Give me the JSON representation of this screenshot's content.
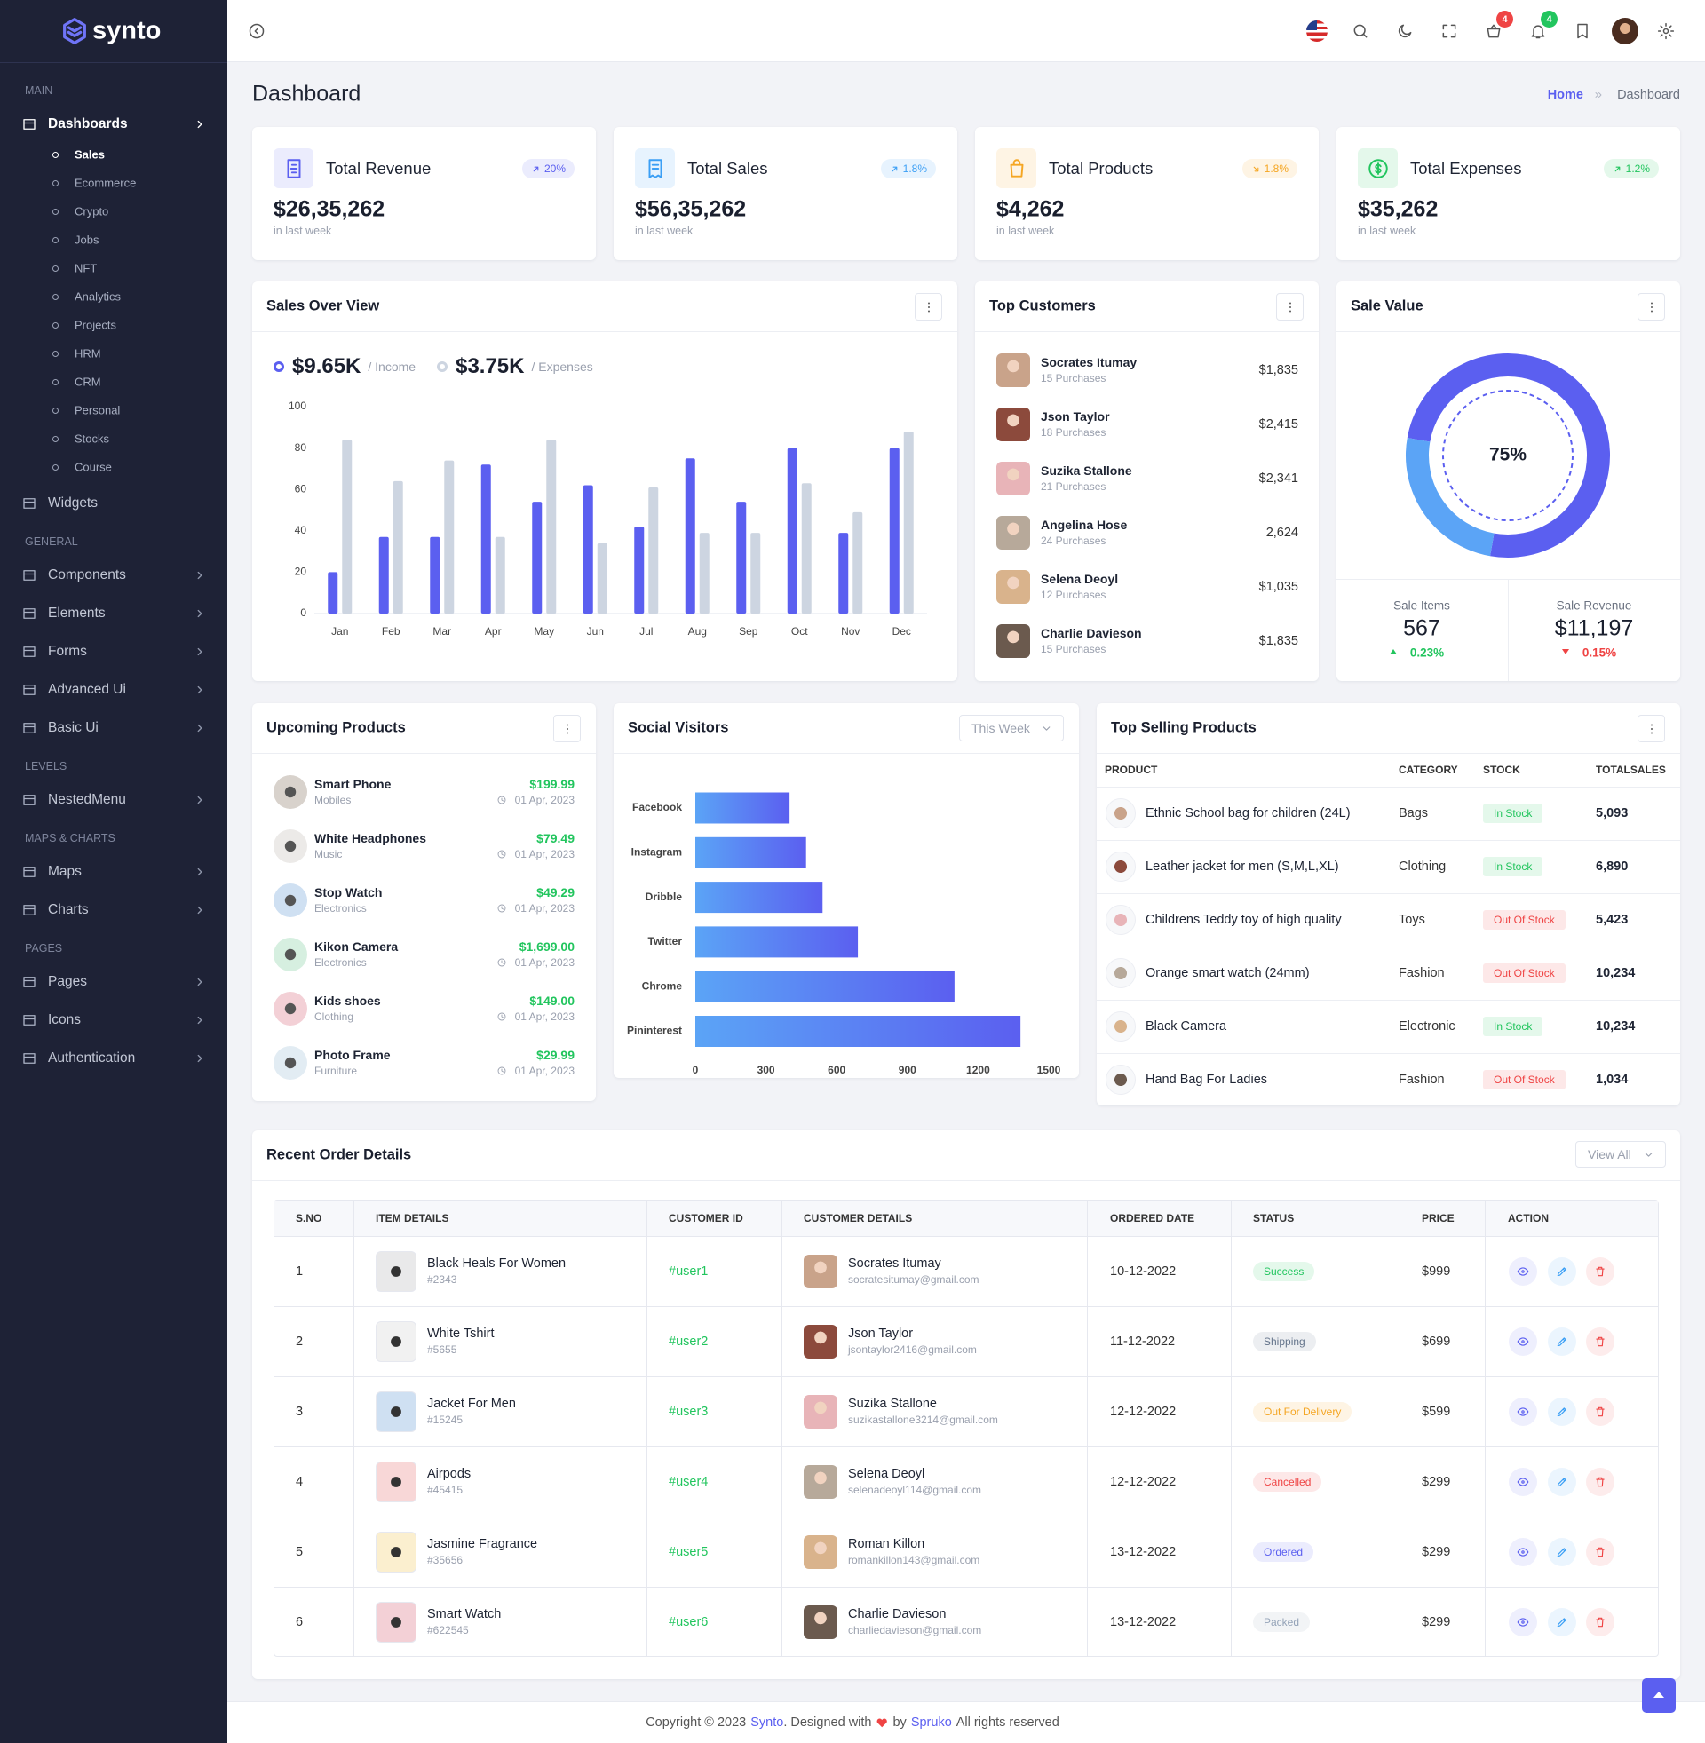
{
  "sidebar": {
    "logo": "synto",
    "sections": [
      {
        "title": "MAIN",
        "items": [
          {
            "label": "Dashboards",
            "submenu": true,
            "children": [
              "Sales",
              "Ecommerce",
              "Crypto",
              "Jobs",
              "NFT",
              "Analytics",
              "Projects",
              "HRM",
              "CRM",
              "Personal",
              "Stocks",
              "Course"
            ]
          },
          {
            "label": "Widgets",
            "submenu": false
          }
        ]
      },
      {
        "title": "GENERAL",
        "items": [
          {
            "label": "Components",
            "submenu": true
          },
          {
            "label": "Elements",
            "submenu": true
          },
          {
            "label": "Forms",
            "submenu": true
          },
          {
            "label": "Advanced Ui",
            "submenu": true
          },
          {
            "label": "Basic Ui",
            "submenu": true
          }
        ]
      },
      {
        "title": "LEVELS",
        "items": [
          {
            "label": "NestedMenu",
            "submenu": true
          }
        ]
      },
      {
        "title": "MAPS & CHARTS",
        "items": [
          {
            "label": "Maps",
            "submenu": true
          },
          {
            "label": "Charts",
            "submenu": true
          }
        ]
      },
      {
        "title": "PAGES",
        "items": [
          {
            "label": "Pages",
            "submenu": true
          },
          {
            "label": "Icons",
            "submenu": true
          },
          {
            "label": "Authentication",
            "submenu": true
          }
        ]
      }
    ]
  },
  "header": {
    "cart_badge": "4",
    "notification_badge": "4"
  },
  "page": {
    "title": "Dashboard",
    "breadcrumb": [
      "Home",
      "Dashboard"
    ]
  },
  "stats": [
    {
      "title": "Total Revenue",
      "change": "20%",
      "trend": "up",
      "value": "$26,35,262",
      "note": "in last week",
      "color": "#5b5ff0"
    },
    {
      "title": "Total Sales",
      "change": "1.8%",
      "trend": "up",
      "value": "$56,35,262",
      "note": "in last week",
      "color": "#3b9ff5"
    },
    {
      "title": "Total Products",
      "change": "1.8%",
      "trend": "down",
      "value": "$4,262",
      "note": "in last week",
      "color": "#f5a623"
    },
    {
      "title": "Total Expenses",
      "change": "1.2%",
      "trend": "up",
      "value": "$35,262",
      "note": "in last week",
      "color": "#22c55e"
    }
  ],
  "chart_data": [
    {
      "type": "bar",
      "title": "Sales Over View",
      "categories": [
        "Jan",
        "Feb",
        "Mar",
        "Apr",
        "May",
        "Jun",
        "Jul",
        "Aug",
        "Sep",
        "Oct",
        "Nov",
        "Dec"
      ],
      "series": [
        {
          "name": "/ Income",
          "total": "$9.65K",
          "color": "#5b5ff0",
          "values": [
            20,
            37,
            37,
            72,
            54,
            62,
            42,
            75,
            54,
            80,
            39,
            80
          ]
        },
        {
          "name": "/ Expenses",
          "total": "$3.75K",
          "color": "#cdd5e1",
          "values": [
            84,
            64,
            74,
            37,
            84,
            34,
            61,
            39,
            39,
            63,
            49,
            88
          ]
        }
      ],
      "ylim": [
        0,
        100
      ],
      "yticks": [
        0,
        20,
        40,
        60,
        80,
        100
      ],
      "grid": false
    },
    {
      "type": "doughnut",
      "title": "Sale Value",
      "values": [
        75,
        25
      ],
      "colors": [
        "#5b5ff0",
        "#5ba4f6"
      ],
      "center_label": "75%"
    },
    {
      "type": "barh",
      "title": "Social Visitors",
      "filter": "This Week",
      "categories": [
        "Facebook",
        "Instagram",
        "Dribble",
        "Twitter",
        "Chrome",
        "Pininterest"
      ],
      "values": [
        400,
        470,
        540,
        690,
        1100,
        1380
      ],
      "colors": [
        "#5ba4f6",
        "#5b5ff0"
      ],
      "xlim": [
        0,
        1500
      ],
      "xticks": [
        0,
        300,
        600,
        900,
        1200,
        1500
      ],
      "grid": false
    }
  ],
  "top_customers": {
    "title": "Top Customers",
    "rows": [
      {
        "name": "Socrates Itumay",
        "purchases": "15 Purchases",
        "amount": "$1,835"
      },
      {
        "name": "Json Taylor",
        "purchases": "18 Purchases",
        "amount": "$2,415"
      },
      {
        "name": "Suzika Stallone",
        "purchases": "21 Purchases",
        "amount": "$2,341"
      },
      {
        "name": "Angelina Hose",
        "purchases": "24 Purchases",
        "amount": "2,624"
      },
      {
        "name": "Selena Deoyl",
        "purchases": "12 Purchases",
        "amount": "$1,035"
      },
      {
        "name": "Charlie Davieson",
        "purchases": "15 Purchases",
        "amount": "$1,835"
      }
    ]
  },
  "sale_value_stats": [
    {
      "label": "Sale Items",
      "value": "567",
      "change": "0.23%",
      "trend": "up"
    },
    {
      "label": "Sale Revenue",
      "value": "$11,197",
      "change": "0.15%",
      "trend": "down"
    }
  ],
  "upcoming_products": {
    "title": "Upcoming Products",
    "rows": [
      {
        "name": "Smart Phone",
        "category": "Mobiles",
        "price": "$199.99",
        "date": "01 Apr, 2023"
      },
      {
        "name": "White Headphones",
        "category": "Music",
        "price": "$79.49",
        "date": "01 Apr, 2023"
      },
      {
        "name": "Stop Watch",
        "category": "Electronics",
        "price": "$49.29",
        "date": "01 Apr, 2023"
      },
      {
        "name": "Kikon Camera",
        "category": "Electronics",
        "price": "$1,699.00",
        "date": "01 Apr, 2023"
      },
      {
        "name": "Kids shoes",
        "category": "Clothing",
        "price": "$149.00",
        "date": "01 Apr, 2023"
      },
      {
        "name": "Photo Frame",
        "category": "Furniture",
        "price": "$29.99",
        "date": "01 Apr, 2023"
      }
    ]
  },
  "top_selling": {
    "title": "Top Selling Products",
    "columns": [
      "PRODUCT",
      "CATEGORY",
      "STOCK",
      "TOTALSALES"
    ],
    "rows": [
      {
        "product": "Ethnic School bag for children (24L)",
        "category": "Bags",
        "stock": "In Stock",
        "stock_color": "#22c55e",
        "sales": "5,093"
      },
      {
        "product": "Leather jacket for men (S,M,L,XL)",
        "category": "Clothing",
        "stock": "In Stock",
        "stock_color": "#22c55e",
        "sales": "6,890"
      },
      {
        "product": "Childrens Teddy toy of high quality",
        "category": "Toys",
        "stock": "Out Of Stock",
        "stock_color": "#ef4444",
        "sales": "5,423"
      },
      {
        "product": "Orange smart watch (24mm)",
        "category": "Fashion",
        "stock": "Out Of Stock",
        "stock_color": "#ef4444",
        "sales": "10,234"
      },
      {
        "product": "Black Camera",
        "category": "Electronic",
        "stock": "In Stock",
        "stock_color": "#22c55e",
        "sales": "10,234"
      },
      {
        "product": "Hand Bag For Ladies",
        "category": "Fashion",
        "stock": "Out Of Stock",
        "stock_color": "#ef4444",
        "sales": "1,034"
      }
    ]
  },
  "recent_orders": {
    "title": "Recent Order Details",
    "button": "View All",
    "columns": [
      "S.NO",
      "ITEM DETAILS",
      "CUSTOMER ID",
      "CUSTOMER DETAILS",
      "ORDERED DATE",
      "STATUS",
      "PRICE",
      "ACTION"
    ],
    "rows": [
      {
        "sno": 1,
        "item": "Black Heals For Women",
        "item_id": "#2343",
        "customer_id": "#user1",
        "customer": "Socrates Itumay",
        "email": "socratesitumay@gmail.com",
        "date": "10-12-2022",
        "status": "Success",
        "status_color": "#22c55e",
        "price": "$999"
      },
      {
        "sno": 2,
        "item": "White Tshirt",
        "item_id": "#5655",
        "customer_id": "#user2",
        "customer": "Json Taylor",
        "email": "jsontaylor2416@gmail.com",
        "date": "11-12-2022",
        "status": "Shipping",
        "status_color": "#64748b",
        "price": "$699"
      },
      {
        "sno": 3,
        "item": "Jacket For Men",
        "item_id": "#15245",
        "customer_id": "#user3",
        "customer": "Suzika Stallone",
        "email": "suzikastallone3214@gmail.com",
        "date": "12-12-2022",
        "status": "Out For Delivery",
        "status_color": "#f5a623",
        "price": "$599"
      },
      {
        "sno": 4,
        "item": "Airpods",
        "item_id": "#45415",
        "customer_id": "#user4",
        "customer": "Selena Deoyl",
        "email": "selenadeoyl114@gmail.com",
        "date": "12-12-2022",
        "status": "Cancelled",
        "status_color": "#ef4444",
        "price": "$299"
      },
      {
        "sno": 5,
        "item": "Jasmine Fragrance",
        "item_id": "#35656",
        "customer_id": "#user5",
        "customer": "Roman Killon",
        "email": "romankillon143@gmail.com",
        "date": "13-12-2022",
        "status": "Ordered",
        "status_color": "#5b5ff0",
        "price": "$299"
      },
      {
        "sno": 6,
        "item": "Smart Watch",
        "item_id": "#622545",
        "customer_id": "#user6",
        "customer": "Charlie Davieson",
        "email": "charliedavieson@gmail.com",
        "date": "13-12-2022",
        "status": "Packed",
        "status_color": "#94a3b8",
        "price": "$299"
      }
    ]
  },
  "footer": {
    "copyright": "Copyright © 2023",
    "brand": "Synto",
    "designed": ". Designed with",
    "by": "by",
    "company": "Spruko",
    "rights": "All rights reserved"
  }
}
